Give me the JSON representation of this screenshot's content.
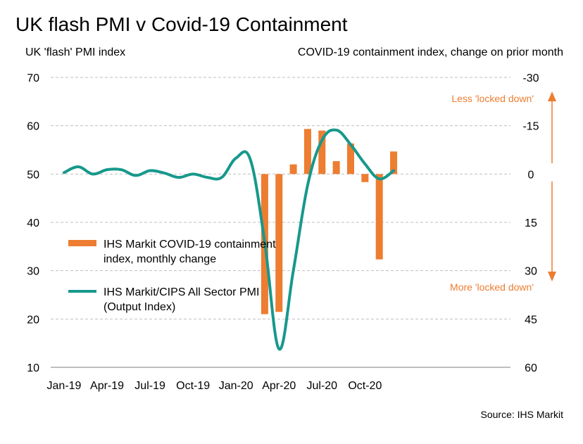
{
  "title": "UK flash PMI v Covid-19 Containment",
  "left_axis_label": "UK 'flash' PMI index",
  "right_axis_label": "COVID-19 containment index, change on prior month",
  "source": "Source: IHS Markit",
  "annotations": {
    "up": "Less 'locked down'",
    "down": "More 'locked down'"
  },
  "legend": {
    "bars_line1": "IHS Markit COVID-19 containment",
    "bars_line2": "index, monthly change",
    "line_line1": "IHS Markit/CIPS All Sector PMI",
    "line_line2": "(Output Index)"
  },
  "colors": {
    "bars": "#ED7D31",
    "line": "#17988C",
    "grid": "#BFBFBF",
    "annotation": "#ED7D31"
  },
  "chart_data": {
    "type": "bar+line",
    "x_labels": [
      "Jan-19",
      "Apr-19",
      "Jul-19",
      "Oct-19",
      "Jan-20",
      "Apr-20",
      "Jul-20",
      "Oct-20"
    ],
    "left_ticks": [
      "70",
      "60",
      "50",
      "40",
      "30",
      "20",
      "10"
    ],
    "right_ticks": [
      "-30",
      "-15",
      "0",
      "15",
      "30",
      "45",
      "60"
    ],
    "left_ylim": [
      10,
      70
    ],
    "right_ylim": [
      60,
      -30
    ],
    "right_axis_inverted": true,
    "grid": true,
    "months": [
      "Jan-19",
      "Feb-19",
      "Mar-19",
      "Apr-19",
      "May-19",
      "Jun-19",
      "Jul-19",
      "Aug-19",
      "Sep-19",
      "Oct-19",
      "Nov-19",
      "Dec-19",
      "Jan-20",
      "Feb-20",
      "Mar-20",
      "Apr-20",
      "May-20",
      "Jun-20",
      "Jul-20",
      "Aug-20",
      "Sep-20",
      "Oct-20",
      "Nov-20",
      "Dec-20"
    ],
    "series": [
      {
        "name": "IHS Markit/CIPS All Sector PMI (Output Index)",
        "type": "line",
        "axis": "left",
        "values": [
          50.3,
          51.5,
          50.0,
          50.9,
          50.9,
          49.7,
          50.7,
          50.2,
          49.3,
          50.0,
          49.3,
          49.3,
          53.3,
          53.0,
          36.0,
          13.8,
          30.0,
          47.7,
          57.0,
          59.1,
          56.1,
          52.1,
          49.0,
          50.7
        ]
      },
      {
        "name": "IHS Markit COVID-19 containment index, monthly change",
        "type": "bar",
        "axis": "right",
        "months": [
          "Mar-20",
          "Apr-20",
          "May-20",
          "Jun-20",
          "Jul-20",
          "Aug-20",
          "Sep-20",
          "Oct-20",
          "Nov-20",
          "Dec-20"
        ],
        "values": [
          43.5,
          42.8,
          -3.0,
          -14.0,
          -13.5,
          -4.0,
          -9.5,
          2.5,
          26.5,
          -7.0
        ]
      }
    ]
  }
}
